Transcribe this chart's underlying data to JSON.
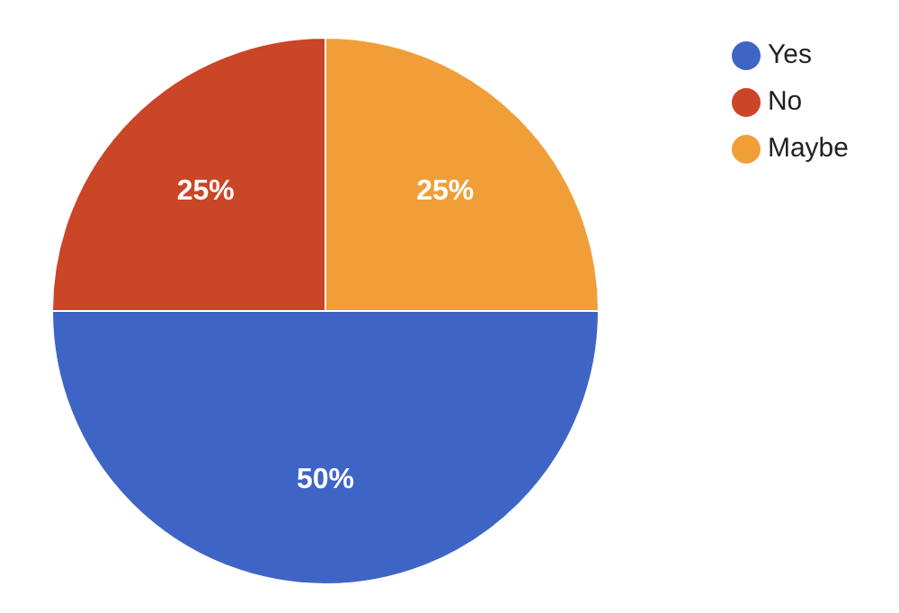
{
  "chart_data": {
    "type": "pie",
    "categories": [
      "Yes",
      "No",
      "Maybe"
    ],
    "values": [
      50,
      25,
      25
    ],
    "colors": [
      "#3e65c6",
      "#cb4527",
      "#f09f38"
    ],
    "value_labels": [
      "50%",
      "25%",
      "25%"
    ],
    "legend": "top right"
  }
}
